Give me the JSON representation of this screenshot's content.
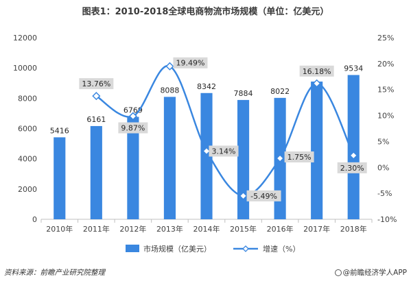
{
  "chart_data": {
    "type": "bar+line",
    "title": "图表1：2010-2018全球电商物流市场规模（单位：亿美元）",
    "categories": [
      "2010年",
      "2011年",
      "2012年",
      "2013年",
      "2014年",
      "2015年",
      "2016年",
      "2017年",
      "2018年"
    ],
    "series": [
      {
        "name": "市场规模（亿美元）",
        "type": "bar",
        "axis": "left",
        "values": [
          5416,
          6161,
          6769,
          8088,
          8342,
          7884,
          8022,
          9100,
          9534
        ],
        "labels": [
          "5416",
          "6161",
          "6769",
          "8088",
          "8342",
          "7884",
          "8022",
          "",
          "9534"
        ]
      },
      {
        "name": "增速（%）",
        "type": "line",
        "axis": "right",
        "values": [
          null,
          13.76,
          9.87,
          19.49,
          3.14,
          -5.49,
          1.75,
          16.18,
          2.3
        ],
        "labels": [
          "",
          "13.76%",
          "9.87%",
          "19.49%",
          "3.14%",
          "-5.49%",
          "1.75%",
          "16.18%",
          "2.30%"
        ]
      }
    ],
    "ylim_left": [
      0,
      12000
    ],
    "yticks_left": [
      "0",
      "2000",
      "4000",
      "6000",
      "8000",
      "10000",
      "12000"
    ],
    "ylim_right": [
      -10,
      25
    ],
    "yticks_right": [
      "-10%",
      "-5%",
      "0%",
      "5%",
      "10%",
      "15%",
      "20%",
      "25%"
    ],
    "grid": false,
    "legend_position": "bottom",
    "colors": {
      "bar": "#3a87e0",
      "line": "#3a87e0",
      "marker_fill": "#ffffff",
      "label_box": "#d9d9d9"
    }
  },
  "footer": {
    "source": "资料来源：前瞻产业研究院整理",
    "brand": "@前瞻经济学人APP"
  }
}
